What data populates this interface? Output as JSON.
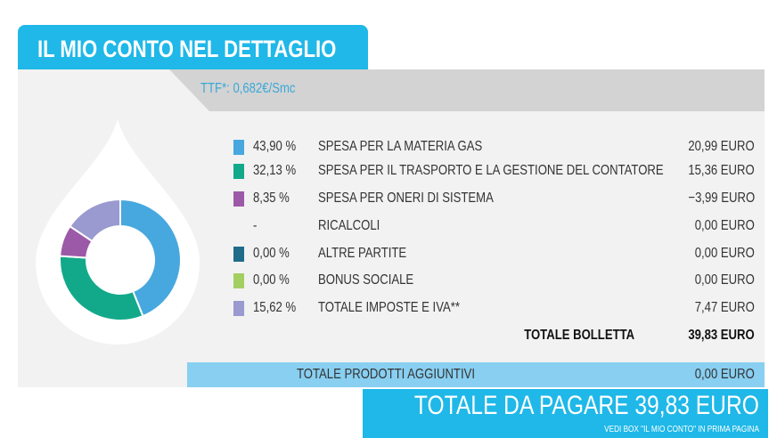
{
  "title": "IL MIO CONTO NEL DETTAGLIO",
  "ttf": "TTF*: 0,682€/Smc",
  "items": [
    {
      "pct": "43,90 %",
      "label": "SPESA PER LA MATERIA GAS",
      "value": "20,99 EURO",
      "color": "#46a8de",
      "share": 43.9
    },
    {
      "pct": "32,13 %",
      "label": "SPESA PER IL TRASPORTO E LA GESTIONE DEL CONTATORE",
      "value": "15,36 EURO",
      "color": "#12a98a",
      "share": 32.13
    },
    {
      "pct": "8,35 %",
      "label": "SPESA PER ONERI DI SISTEMA",
      "value": "−3,99 EURO",
      "color": "#9c59a8",
      "share": 8.35
    },
    {
      "pct": "-",
      "label": "RICALCOLI",
      "value": "0,00 EURO",
      "color": "",
      "share": 0
    },
    {
      "pct": "0,00 %",
      "label": "ALTRE PARTITE",
      "value": "0,00 EURO",
      "color": "#1f6c8a",
      "share": 0
    },
    {
      "pct": "0,00 %",
      "label": "BONUS SOCIALE",
      "value": "0,00 EURO",
      "color": "#a3cf62",
      "share": 0
    },
    {
      "pct": "15,62 %",
      "label": "TOTALE IMPOSTE E IVA**",
      "value": "7,47 EURO",
      "color": "#9a9ad0",
      "share": 15.62
    }
  ],
  "total_label": "TOTALE BOLLETTA",
  "total_value": "39,83 EURO",
  "extra_label": "TOTALE PRODOTTI AGGIUNTIVI",
  "extra_value": "0,00 EURO",
  "pay": "TOTALE DA PAGARE 39,83 EURO",
  "pay_note": "VEDI BOX \"IL MIO CONTO\" IN PRIMA PAGINA"
}
